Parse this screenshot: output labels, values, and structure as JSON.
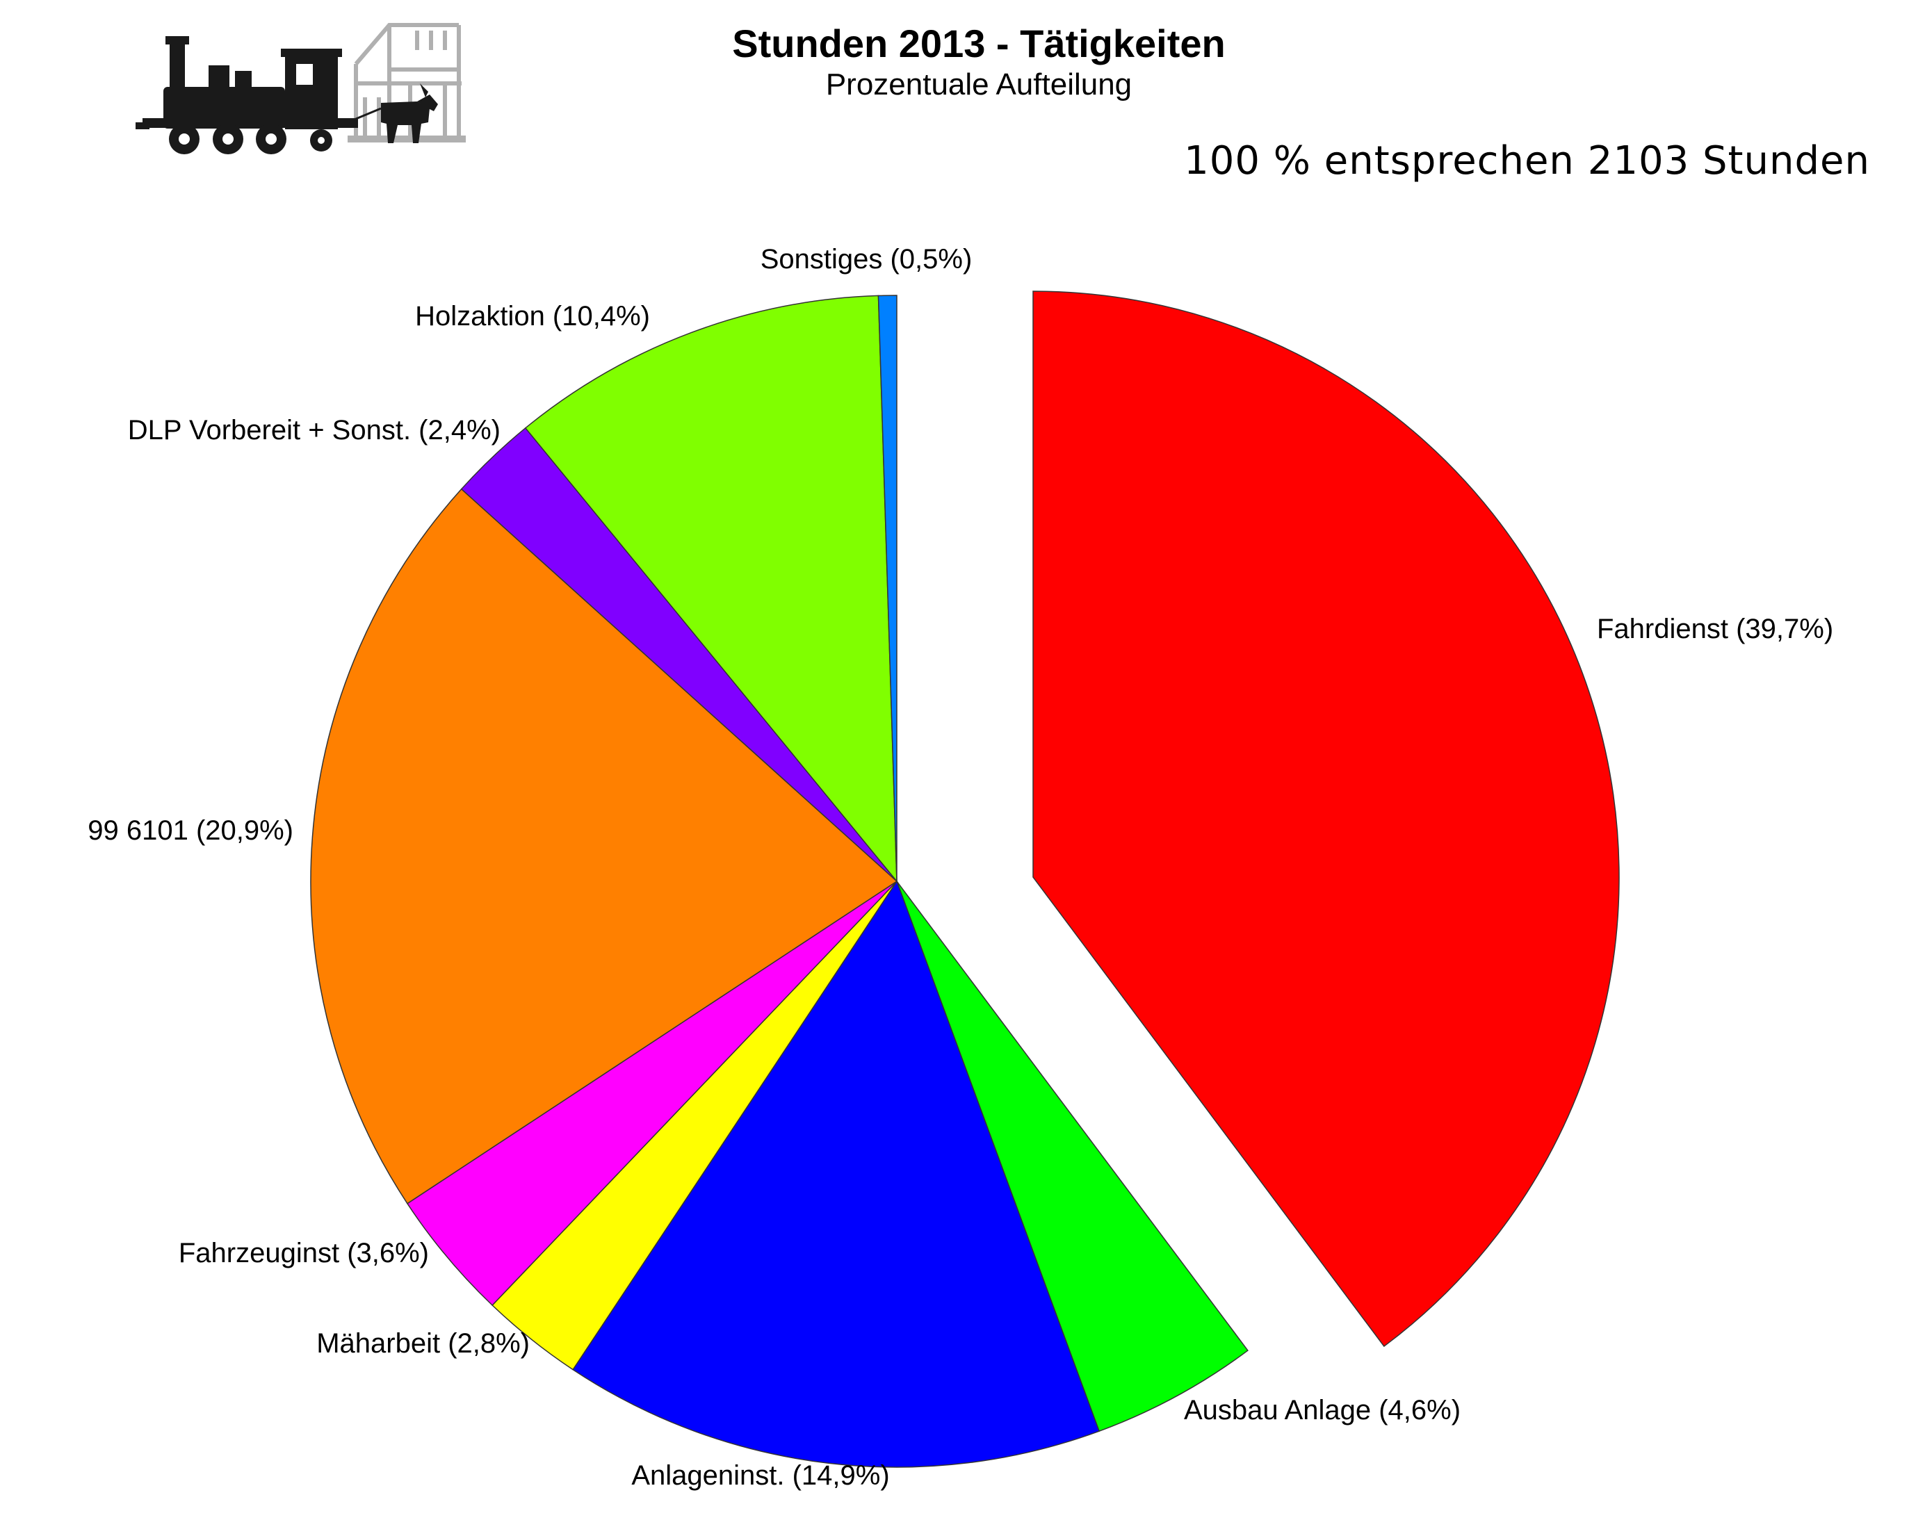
{
  "chart_data": {
    "type": "pie",
    "title": "Stunden 2013 - Tätigkeiten",
    "subtitle": "Prozentuale Aufteilung",
    "note": "100 % entsprechen 2103 Stunden",
    "total_hours": 2103,
    "unit": "%",
    "slices": [
      {
        "key": "fahrdienst",
        "name": "Fahrdienst",
        "value": 39.7,
        "label": "Fahrdienst (39,7%)",
        "color": "#ff0000",
        "exploded": true
      },
      {
        "key": "ausbau",
        "name": "Ausbau Anlage",
        "value": 4.6,
        "label": "Ausbau Anlage (4,6%)",
        "color": "#00ff00",
        "exploded": false
      },
      {
        "key": "anlageninst",
        "name": "Anlageninst.",
        "value": 14.9,
        "label": "Anlageninst. (14,9%)",
        "color": "#0000ff",
        "exploded": false
      },
      {
        "key": "maharbeit",
        "name": "Mäharbeit",
        "value": 2.8,
        "label": "Mäharbeit (2,8%)",
        "color": "#ffff00",
        "exploded": false
      },
      {
        "key": "fahrzeuginst",
        "name": "Fahrzeuginst",
        "value": 3.6,
        "label": "Fahrzeuginst (3,6%)",
        "color": "#ff00ff",
        "exploded": false
      },
      {
        "key": "lok996101",
        "name": "99 6101",
        "value": 20.9,
        "label": "99 6101 (20,9%)",
        "color": "#ff8000",
        "exploded": false
      },
      {
        "key": "dlp",
        "name": "DLP Vorbereit + Sonst.",
        "value": 2.4,
        "label": "DLP Vorbereit + Sonst. (2,4%)",
        "color": "#8000ff",
        "exploded": false
      },
      {
        "key": "holzaktion",
        "name": "Holzaktion",
        "value": 10.4,
        "label": "Holzaktion (10,4%)",
        "color": "#80ff00",
        "exploded": false
      },
      {
        "key": "sonstiges",
        "name": "Sonstiges",
        "value": 0.5,
        "label": "Sonstiges (0,5%)",
        "color": "#0080ff",
        "exploded": false
      }
    ],
    "start_angle_deg": 0,
    "direction": "clockwise"
  },
  "logo": {
    "icon": "steam-locomotive-with-goat-logo"
  }
}
